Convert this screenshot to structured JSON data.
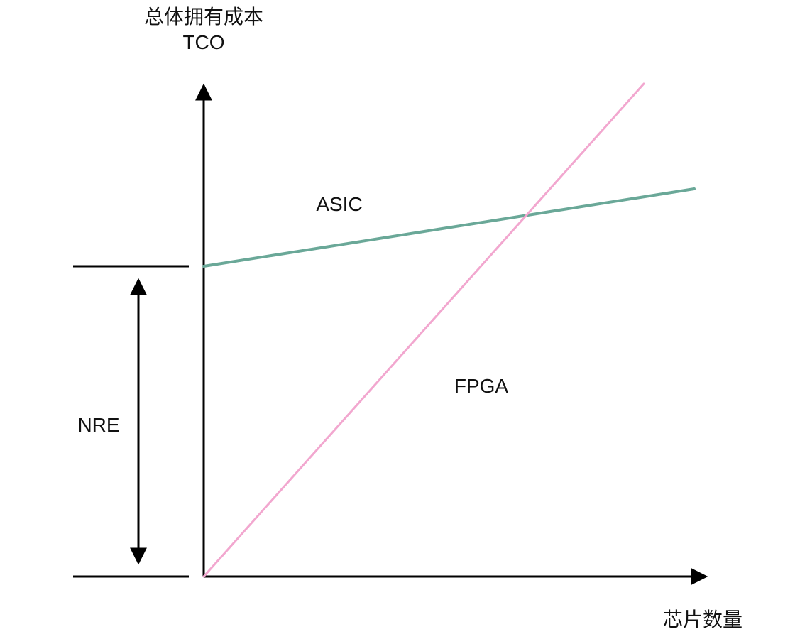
{
  "chart_data": {
    "type": "line",
    "title": "",
    "ylabel": [
      "总体拥有成本",
      "TCO"
    ],
    "xlabel": "芯片数量",
    "x": [
      0,
      1
    ],
    "xlim": [
      0,
      1
    ],
    "ylim": [
      0,
      1
    ],
    "grid": false,
    "legend": "none",
    "series": [
      {
        "name": "ASIC",
        "color": "#6aa898",
        "points": [
          [
            0,
            0.4
          ],
          [
            1,
            0.64
          ]
        ]
      },
      {
        "name": "FPGA",
        "color": "#f2a7cf",
        "points": [
          [
            0,
            0.0
          ],
          [
            0.88,
            0.96
          ]
        ]
      }
    ],
    "annotations": [
      {
        "text": "NRE",
        "type": "span",
        "from": 0,
        "to": 0.4
      }
    ]
  },
  "colors": {
    "axis": "#000000",
    "text": "#111111",
    "asic": "#6aa898",
    "fpga": "#f2a7cf"
  }
}
